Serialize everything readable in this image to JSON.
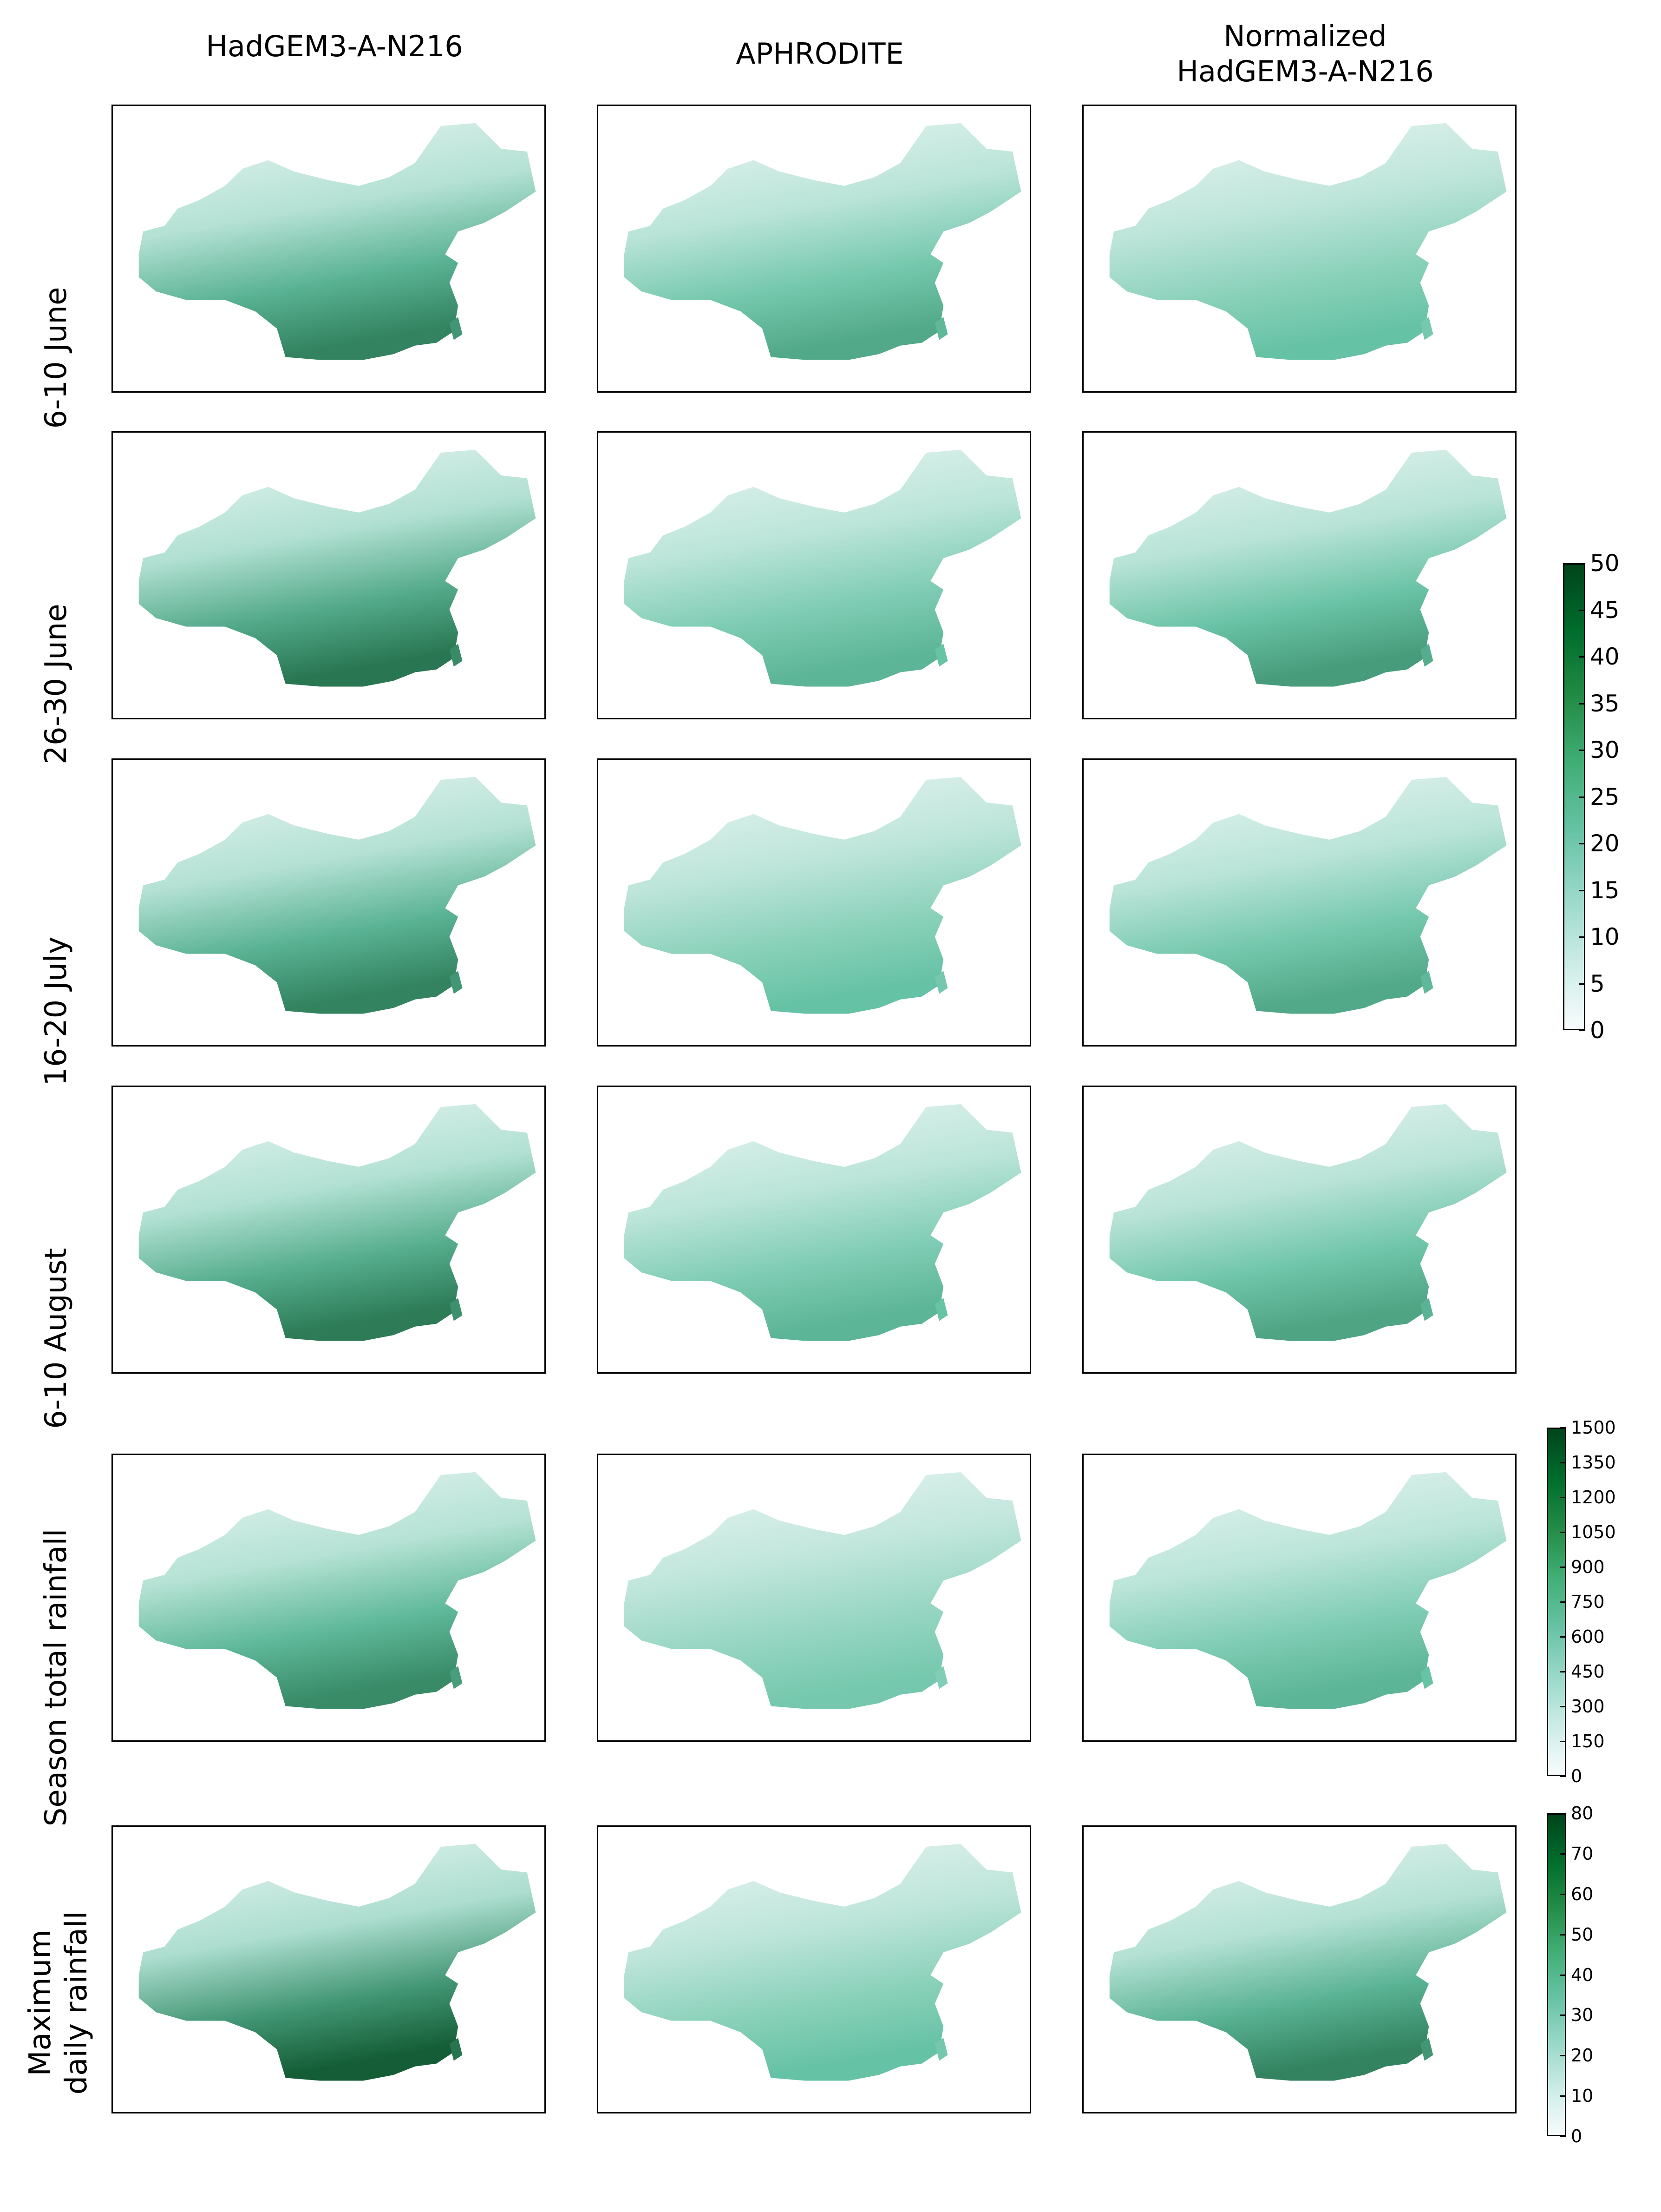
{
  "columns": [
    "HadGEM3-A-N216",
    "APHRODITE",
    "Normalized\nHadGEM3-A-N216"
  ],
  "rows": [
    "6-10 June",
    "26-30 June",
    "16-20 July",
    "6-10 August",
    "Season total rainfall",
    "Maximum\ndaily rainfall"
  ],
  "colorbars": {
    "pentad": {
      "ticks": [
        "0",
        "5",
        "10",
        "15",
        "20",
        "25",
        "30",
        "35",
        "40",
        "45",
        "50"
      ]
    },
    "season": {
      "ticks": [
        "0",
        "150",
        "300",
        "450",
        "600",
        "750",
        "900",
        "1050",
        "1200",
        "1350",
        "1500"
      ]
    },
    "max_daily": {
      "ticks": [
        "0",
        "10",
        "20",
        "30",
        "40",
        "50",
        "60",
        "70",
        "80"
      ]
    }
  },
  "colors": {
    "low": "#f7fcfd",
    "mid": "#66c2a4",
    "high": "#00441b"
  },
  "map_intensity": [
    [
      0.75,
      0.6,
      0.5
    ],
    [
      0.8,
      0.55,
      0.65
    ],
    [
      0.75,
      0.5,
      0.6
    ],
    [
      0.78,
      0.55,
      0.62
    ],
    [
      0.72,
      0.45,
      0.55
    ],
    [
      0.9,
      0.5,
      0.75
    ]
  ]
}
